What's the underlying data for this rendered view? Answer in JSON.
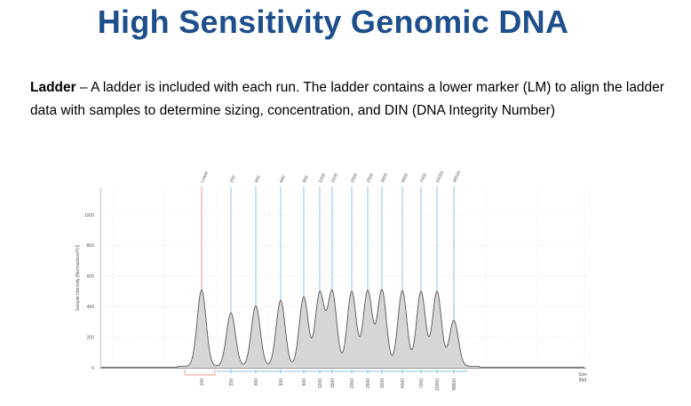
{
  "slide": {
    "title": "High Sensitivity Genomic DNA",
    "desc_bold": "Ladder",
    "desc_rest": " – A ladder is included with each run. The ladder contains a lower marker (LM) to align the ladder data with samples to determine sizing, concentration, and DIN (DNA Integrity Number)"
  },
  "chart_data": {
    "type": "line",
    "ylabel": "Sample Intensity [Normalized FU]",
    "xlabel": "Size [bp]",
    "xlabel_lines": [
      "Size",
      "[bp]"
    ],
    "ylim": [
      0,
      1000
    ],
    "yticks": [
      0,
      200,
      400,
      600,
      800,
      1000
    ],
    "grid": true,
    "peaks": [
      {
        "top_label": "Lower",
        "bottom_label": "100",
        "intensity": 500,
        "marker": "lower"
      },
      {
        "top_label": "250",
        "bottom_label": "250",
        "intensity": 350,
        "marker": "ladder"
      },
      {
        "top_label": "400",
        "bottom_label": "400",
        "intensity": 395,
        "marker": "ladder"
      },
      {
        "top_label": "600",
        "bottom_label": "600",
        "intensity": 430,
        "marker": "ladder"
      },
      {
        "top_label": "900",
        "bottom_label": "900",
        "intensity": 455,
        "marker": "ladder"
      },
      {
        "top_label": "1200",
        "bottom_label": "1200",
        "intensity": 480,
        "marker": "ladder"
      },
      {
        "top_label": "1500",
        "bottom_label": "1500",
        "intensity": 490,
        "marker": "ladder"
      },
      {
        "top_label": "2000",
        "bottom_label": "2000",
        "intensity": 490,
        "marker": "ladder"
      },
      {
        "top_label": "2500",
        "bottom_label": "2500",
        "intensity": 495,
        "marker": "ladder"
      },
      {
        "top_label": "3000",
        "bottom_label": "3000",
        "intensity": 500,
        "marker": "ladder"
      },
      {
        "top_label": "4000",
        "bottom_label": "4000",
        "intensity": 495,
        "marker": "ladder"
      },
      {
        "top_label": "7000",
        "bottom_label": "7000",
        "intensity": 490,
        "marker": "ladder"
      },
      {
        "top_label": "15000",
        "bottom_label": "15000",
        "intensity": 490,
        "marker": "ladder"
      },
      {
        "top_label": "48500",
        "bottom_label": "48500",
        "intensity": 300,
        "marker": "ladder"
      }
    ],
    "colors": {
      "lower_marker": "#f29a8a",
      "ladder_marker": "#8fc3ea",
      "trace_fill": "#d6d6d6",
      "trace_line": "#555555"
    }
  }
}
